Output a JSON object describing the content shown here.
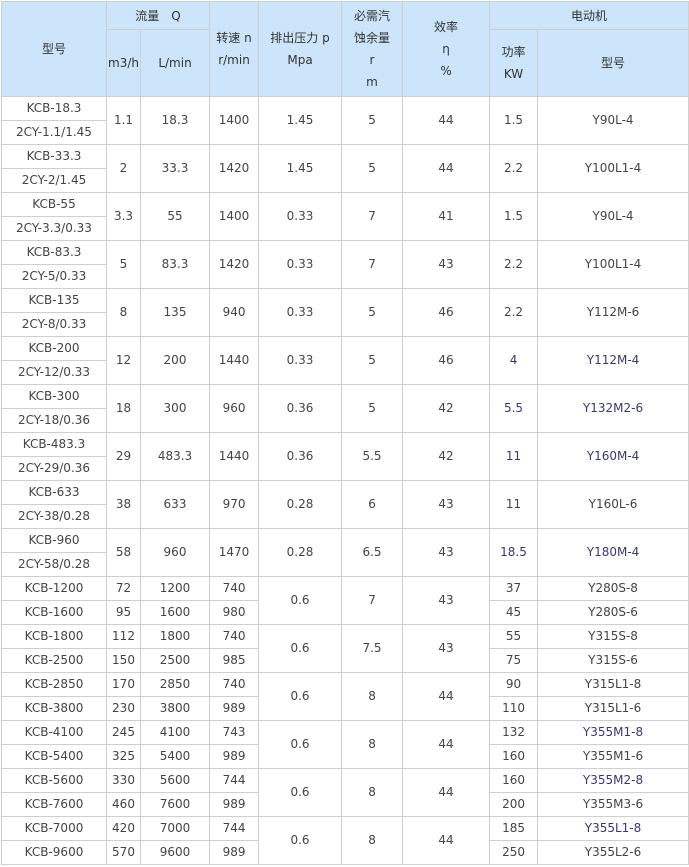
{
  "header": {
    "model": "型号",
    "flow": "流量　Q",
    "flow_m3h": "m3/h",
    "flow_lmin": "L/min",
    "speed": [
      "转速 n",
      "r/min"
    ],
    "pressure": [
      "排出压力 p",
      "Mpa"
    ],
    "npsh": [
      "必需汽",
      "蚀余量",
      "r",
      "m"
    ],
    "efficiency": [
      "效率",
      "η",
      "%"
    ],
    "motor": "电动机",
    "power": [
      "功率",
      "KW"
    ],
    "motor_model": "型号"
  },
  "groups_a": [
    {
      "models": [
        "KCB-18.3",
        "2CY-1.1/1.45"
      ],
      "m3h": "1.1",
      "lmin": "18.3",
      "rpm": "1400",
      "p": "1.45",
      "npsh": "5",
      "eff": "44",
      "kw": "1.5",
      "motor": "Y90L-4"
    },
    {
      "models": [
        "KCB-33.3",
        "2CY-2/1.45"
      ],
      "m3h": "2",
      "lmin": "33.3",
      "rpm": "1420",
      "p": "1.45",
      "npsh": "5",
      "eff": "44",
      "kw": "2.2",
      "motor": "Y100L1-4"
    },
    {
      "models": [
        "KCB-55",
        "2CY-3.3/0.33"
      ],
      "m3h": "3.3",
      "lmin": "55",
      "rpm": "1400",
      "p": "0.33",
      "npsh": "7",
      "eff": "41",
      "kw": "1.5",
      "motor": "Y90L-4"
    },
    {
      "models": [
        "KCB-83.3",
        "2CY-5/0.33"
      ],
      "m3h": "5",
      "lmin": "83.3",
      "rpm": "1420",
      "p": "0.33",
      "npsh": "7",
      "eff": "43",
      "kw": "2.2",
      "motor": "Y100L1-4"
    },
    {
      "models": [
        "KCB-135",
        "2CY-8/0.33"
      ],
      "m3h": "8",
      "lmin": "135",
      "rpm": "940",
      "p": "0.33",
      "npsh": "5",
      "eff": "46",
      "kw": "2.2",
      "motor": "Y112M-6"
    },
    {
      "models": [
        "KCB-200",
        "2CY-12/0.33"
      ],
      "m3h": "12",
      "lmin": "200",
      "rpm": "1440",
      "p": "0.33",
      "npsh": "5",
      "eff": "46",
      "kw": "4",
      "motor": "Y112M-4"
    },
    {
      "models": [
        "KCB-300",
        "2CY-18/0.36"
      ],
      "m3h": "18",
      "lmin": "300",
      "rpm": "960",
      "p": "0.36",
      "npsh": "5",
      "eff": "42",
      "kw": "5.5",
      "motor": "Y132M2-6"
    },
    {
      "models": [
        "KCB-483.3",
        "2CY-29/0.36"
      ],
      "m3h": "29",
      "lmin": "483.3",
      "rpm": "1440",
      "p": "0.36",
      "npsh": "5.5",
      "eff": "42",
      "kw": "11",
      "motor": "Y160M-4"
    },
    {
      "models": [
        "KCB-633",
        "2CY-38/0.28"
      ],
      "m3h": "38",
      "lmin": "633",
      "rpm": "970",
      "p": "0.28",
      "npsh": "6",
      "eff": "43",
      "kw": "11",
      "motor": "Y160L-6"
    },
    {
      "models": [
        "KCB-960",
        "2CY-58/0.28"
      ],
      "m3h": "58",
      "lmin": "960",
      "rpm": "1470",
      "p": "0.28",
      "npsh": "6.5",
      "eff": "43",
      "kw": "18.5",
      "motor": "Y180M-4"
    }
  ],
  "groups_b": [
    {
      "p": "0.6",
      "npsh": "7",
      "eff": "43",
      "rows": [
        {
          "model": "KCB-1200",
          "m3h": "72",
          "lmin": "1200",
          "rpm": "740",
          "kw": "37",
          "motor": "Y280S-8"
        },
        {
          "model": "KCB-1600",
          "m3h": "95",
          "lmin": "1600",
          "rpm": "980",
          "kw": "45",
          "motor": "Y280S-6"
        }
      ]
    },
    {
      "p": "0.6",
      "npsh": "7.5",
      "eff": "43",
      "rows": [
        {
          "model": "KCB-1800",
          "m3h": "112",
          "lmin": "1800",
          "rpm": "740",
          "kw": "55",
          "motor": "Y315S-8"
        },
        {
          "model": "KCB-2500",
          "m3h": "150",
          "lmin": "2500",
          "rpm": "985",
          "kw": "75",
          "motor": "Y315S-6"
        }
      ]
    },
    {
      "p": "0.6",
      "npsh": "8",
      "eff": "44",
      "rows": [
        {
          "model": "KCB-2850",
          "m3h": "170",
          "lmin": "2850",
          "rpm": "740",
          "kw": "90",
          "motor": "Y315L1-8"
        },
        {
          "model": "KCB-3800",
          "m3h": "230",
          "lmin": "3800",
          "rpm": "989",
          "kw": "110",
          "motor": "Y315L1-6"
        }
      ]
    },
    {
      "p": "0.6",
      "npsh": "8",
      "eff": "44",
      "rows": [
        {
          "model": "KCB-4100",
          "m3h": "245",
          "lmin": "4100",
          "rpm": "743",
          "kw": "132",
          "motor": "Y355M1-8"
        },
        {
          "model": "KCB-5400",
          "m3h": "325",
          "lmin": "5400",
          "rpm": "989",
          "kw": "160",
          "motor": "Y355M1-6"
        }
      ]
    },
    {
      "p": "0.6",
      "npsh": "8",
      "eff": "44",
      "rows": [
        {
          "model": "KCB-5600",
          "m3h": "330",
          "lmin": "5600",
          "rpm": "744",
          "kw": "160",
          "motor": "Y355M2-8"
        },
        {
          "model": "KCB-7600",
          "m3h": "460",
          "lmin": "7600",
          "rpm": "989",
          "kw": "200",
          "motor": "Y355M3-6"
        }
      ]
    },
    {
      "p": "0.6",
      "npsh": "8",
      "eff": "44",
      "rows": [
        {
          "model": "KCB-7000",
          "m3h": "420",
          "lmin": "7000",
          "rpm": "744",
          "kw": "185",
          "motor": "Y355L1-8"
        },
        {
          "model": "KCB-9600",
          "m3h": "570",
          "lmin": "9600",
          "rpm": "989",
          "kw": "250",
          "motor": "Y355L2-6"
        }
      ]
    }
  ]
}
